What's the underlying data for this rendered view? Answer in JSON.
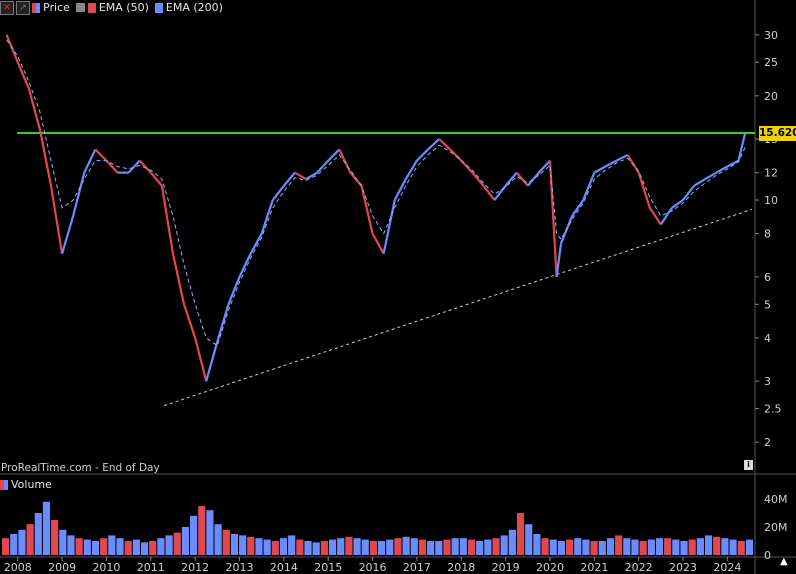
{
  "toolbar": {
    "buttons": [
      {
        "name": "close-chart-button",
        "glyph": "✕",
        "color": "#d9342b"
      },
      {
        "name": "expand-chart-button",
        "glyph": "↗",
        "color": "#3fa63f"
      }
    ],
    "series_legend": [
      {
        "label": "Price",
        "icon": "candlestick-icon"
      },
      {
        "label": "EMA (50)",
        "icon": "list-icon"
      },
      {
        "label": "EMA (200)",
        "icon": "line-icon"
      }
    ],
    "volume_label": "Volume"
  },
  "footer": {
    "source_label": "ProRealTime.com - End of Day"
  },
  "price_marker": {
    "value": "15.620",
    "color": "#f2d300"
  },
  "colors": {
    "up": "#6b8cff",
    "down": "#e0484f",
    "ema": "#8fb0ff",
    "resistance": "#2ed42e",
    "trendline": "#cccccc",
    "background": "#000000"
  },
  "chart_data": {
    "type": "line",
    "scale": "log",
    "x": [
      2007.75,
      2008.0,
      2008.25,
      2008.5,
      2008.75,
      2009.0,
      2009.25,
      2009.5,
      2009.75,
      2010.0,
      2010.25,
      2010.5,
      2010.75,
      2011.0,
      2011.25,
      2011.5,
      2011.75,
      2012.0,
      2012.25,
      2012.5,
      2012.75,
      2013.0,
      2013.25,
      2013.5,
      2013.75,
      2014.0,
      2014.25,
      2014.5,
      2014.75,
      2015.0,
      2015.25,
      2015.5,
      2015.75,
      2016.0,
      2016.25,
      2016.5,
      2016.75,
      2017.0,
      2017.25,
      2017.5,
      2017.75,
      2018.0,
      2018.25,
      2018.5,
      2018.75,
      2019.0,
      2019.25,
      2019.5,
      2019.75,
      2020.0,
      2020.15,
      2020.25,
      2020.5,
      2020.75,
      2021.0,
      2021.25,
      2021.5,
      2021.75,
      2022.0,
      2022.25,
      2022.5,
      2022.75,
      2023.0,
      2023.25,
      2023.5,
      2023.75,
      2024.0,
      2024.25,
      2024.4
    ],
    "series": [
      {
        "type": "line",
        "values": [
          30,
          25,
          21,
          16,
          11,
          7,
          9,
          12,
          14,
          13,
          12,
          12,
          13,
          12,
          11,
          7,
          5,
          4,
          3,
          3.9,
          5,
          6,
          7,
          8,
          10,
          11,
          12,
          11.5,
          12,
          13,
          14,
          12,
          11,
          8,
          7,
          10,
          11.5,
          13,
          14,
          15,
          14,
          13,
          12,
          11,
          10,
          11,
          12,
          11,
          12,
          13,
          6,
          7.5,
          9,
          10,
          12,
          12.5,
          13,
          13.5,
          12,
          9.5,
          8.5,
          9.5,
          10,
          11,
          11.5,
          12,
          12.5,
          13,
          15.6
        ]
      },
      {
        "type": "line",
        "style": "dashed",
        "values": [
          29,
          26,
          22,
          18,
          13,
          9.5,
          10,
          11.5,
          13,
          13,
          12.5,
          12.3,
          12.6,
          12.2,
          11.5,
          9,
          6.5,
          5,
          4,
          3.8,
          4.8,
          5.8,
          6.8,
          7.8,
          9.5,
          10.6,
          11.6,
          11.4,
          11.8,
          12.6,
          13.5,
          12.2,
          11,
          9,
          8,
          9.5,
          11,
          12.5,
          13.5,
          14.4,
          13.8,
          13,
          12.2,
          11.2,
          10.4,
          10.9,
          11.7,
          11.2,
          11.8,
          12.6,
          8,
          7.7,
          8.8,
          9.8,
          11.5,
          12.2,
          12.8,
          13.2,
          12.1,
          10.2,
          9,
          9.3,
          9.8,
          10.6,
          11.2,
          11.8,
          12.3,
          12.9,
          14.2
        ]
      }
    ],
    "xlim": [
      2007.6,
      2024.6
    ],
    "ylim": [
      1.8,
      34
    ],
    "y_ticks": [
      "30",
      "25",
      "20",
      "15",
      "12",
      "10",
      "8",
      "6",
      "5",
      "4",
      "3",
      "2.5",
      "2"
    ],
    "y_tick_values": [
      30,
      25,
      20,
      15,
      12,
      10,
      8,
      6,
      5,
      4,
      3,
      2.5,
      2
    ],
    "x_ticks": [
      "2008",
      "2009",
      "2010",
      "2011",
      "2012",
      "2013",
      "2014",
      "2015",
      "2016",
      "2017",
      "2018",
      "2019",
      "2020",
      "2021",
      "2022",
      "2023",
      "2024"
    ],
    "x_tick_values": [
      2008,
      2009,
      2010,
      2011,
      2012,
      2013,
      2014,
      2015,
      2016,
      2017,
      2018,
      2019,
      2020,
      2021,
      2022,
      2023,
      2024
    ],
    "resistance_level": 15.62,
    "support_trendline": [
      {
        "x": 2011.3,
        "y": 2.55
      },
      {
        "x": 2024.55,
        "y": 9.4
      }
    ],
    "volume": {
      "y_ticks": [
        "40M",
        "20M",
        "0"
      ],
      "y_tick_values": [
        40,
        20,
        0
      ],
      "unit": "M",
      "ylim": [
        0,
        55
      ],
      "values": [
        12,
        15,
        18,
        22,
        30,
        38,
        25,
        18,
        14,
        12,
        11,
        10,
        12,
        14,
        12,
        10,
        11,
        9,
        10,
        12,
        14,
        16,
        20,
        28,
        35,
        32,
        22,
        18,
        15,
        14,
        13,
        12,
        11,
        10,
        12,
        14,
        11,
        10,
        9,
        10,
        11,
        12,
        13,
        12,
        11,
        10,
        10,
        11,
        12,
        13,
        12,
        11,
        10,
        10,
        11,
        12,
        12,
        11,
        10,
        11,
        12,
        14,
        18,
        30,
        22,
        15,
        12,
        11,
        10,
        11,
        12,
        11,
        10,
        10,
        12,
        14,
        12,
        11,
        10,
        11,
        12,
        12,
        11,
        10,
        11,
        12,
        14,
        13,
        12,
        11,
        10,
        11
      ]
    }
  }
}
